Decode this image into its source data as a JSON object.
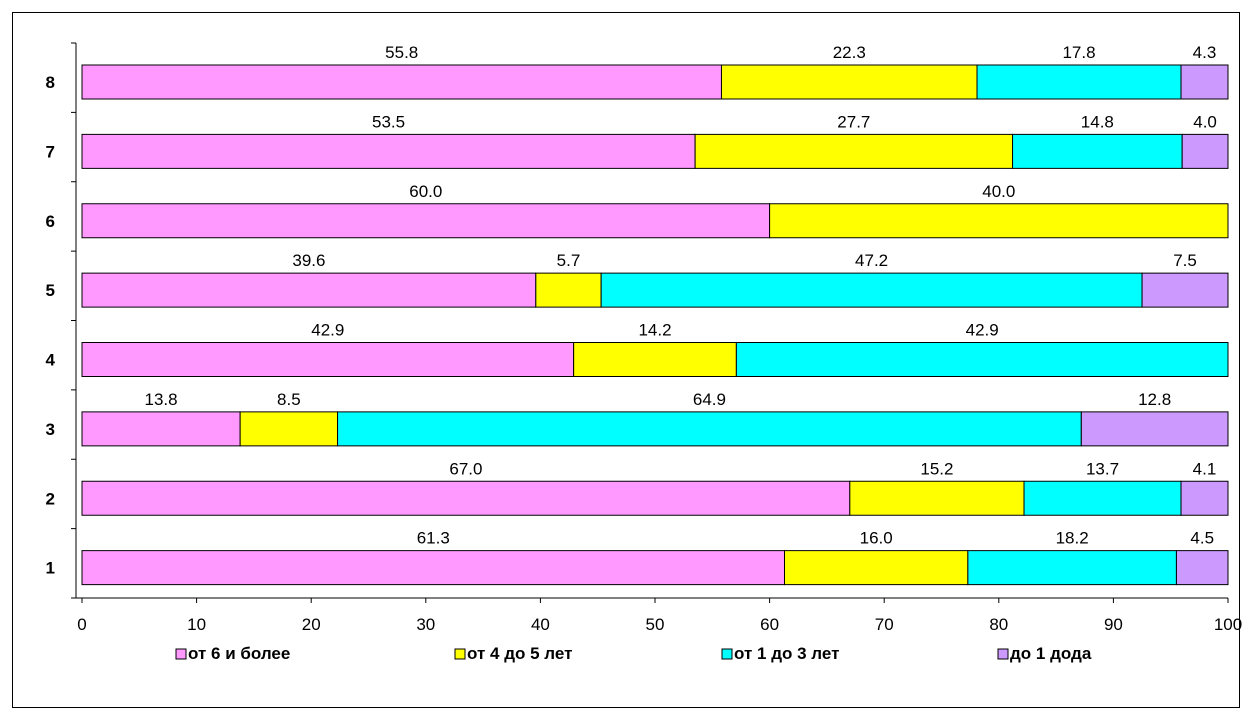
{
  "chart_data": {
    "type": "bar",
    "orientation": "horizontal",
    "stacked": true,
    "categories": [
      "1",
      "2",
      "3",
      "4",
      "5",
      "6",
      "7",
      "8"
    ],
    "series": [
      {
        "name": "от 6  и более",
        "color": "#ff99ff",
        "values": [
          61.3,
          67.0,
          13.8,
          42.9,
          39.6,
          60.0,
          53.5,
          55.8
        ]
      },
      {
        "name": "от 4 до 5 лет",
        "color": "#ffff00",
        "values": [
          16.0,
          15.2,
          8.5,
          14.2,
          5.7,
          40.0,
          27.7,
          22.3
        ]
      },
      {
        "name": "от 1 до 3 лет",
        "color": "#00ffff",
        "values": [
          18.2,
          13.7,
          64.9,
          42.9,
          47.2,
          null,
          14.8,
          17.8
        ]
      },
      {
        "name": "до 1 дода",
        "color": "#cc99ff",
        "values": [
          4.5,
          4.1,
          12.8,
          null,
          7.5,
          null,
          4.0,
          4.3
        ]
      }
    ],
    "xlim": [
      0,
      100
    ],
    "xticks": [
      "0",
      "10",
      "20",
      "30",
      "40",
      "50",
      "60",
      "70",
      "80",
      "90",
      "100"
    ],
    "title": "",
    "xlabel": "",
    "ylabel": "",
    "grid": false,
    "legend_position": "bottom"
  }
}
